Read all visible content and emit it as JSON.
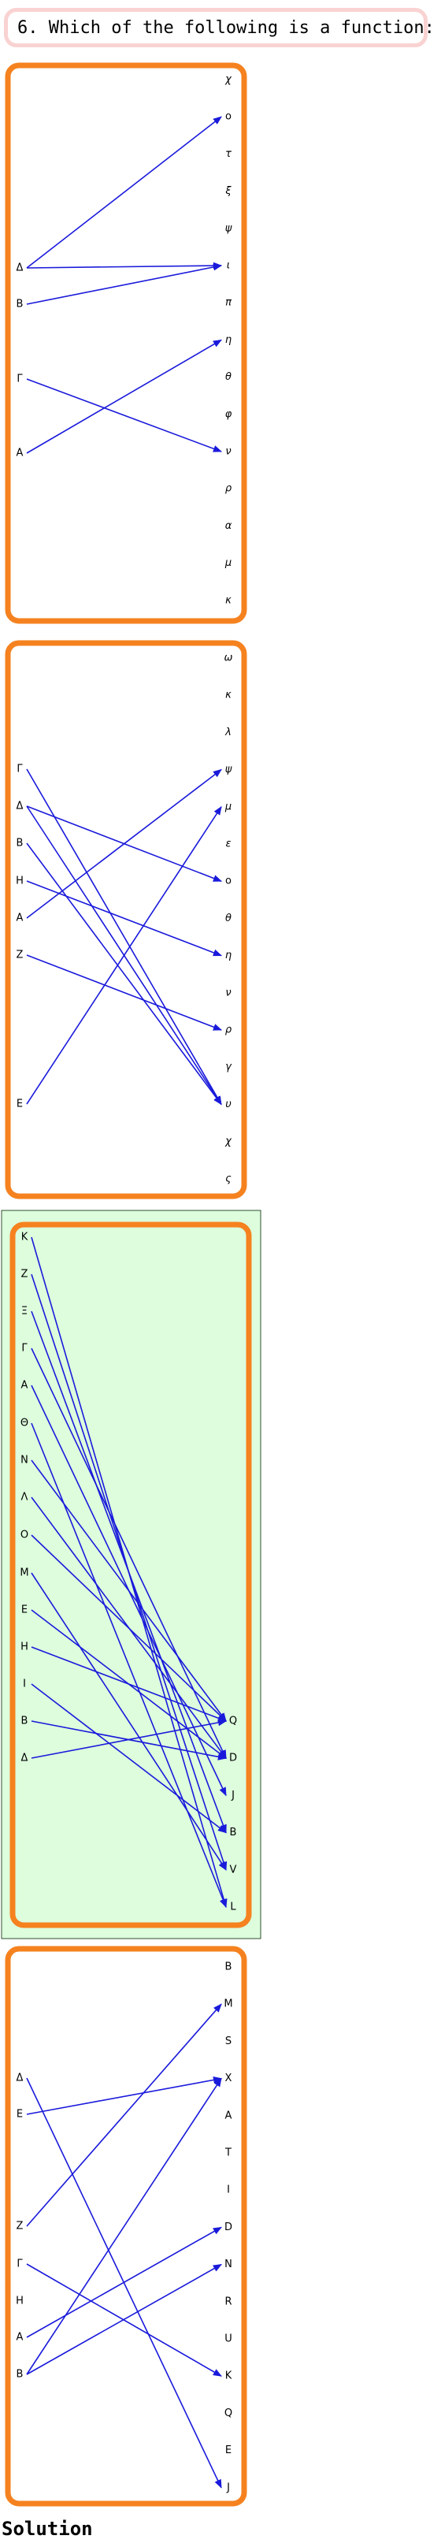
{
  "question": {
    "number": "6.",
    "text": "Which of the following is a function:"
  },
  "solution_label": "Solution",
  "colors": {
    "panel_border": "#f5821f",
    "arrow": "#1a1adb",
    "highlight_fill": "#ddfddd",
    "highlight_border": "#2f4f2f",
    "question_border": "#f9d2d2"
  },
  "options": [
    {
      "id": "option-1",
      "highlighted": false,
      "domain": [
        "Δ",
        "B",
        "Γ",
        "A"
      ],
      "codomain": [
        "χ",
        "o",
        "τ",
        "ξ",
        "ψ",
        "ι",
        "π",
        "η",
        "θ",
        "φ",
        "ν",
        "ρ",
        "α",
        "μ",
        "κ"
      ],
      "arrows": [
        [
          "Δ",
          "o"
        ],
        [
          "Δ",
          "ι"
        ],
        [
          "B",
          "ι"
        ],
        [
          "Γ",
          "ν"
        ],
        [
          "A",
          "η"
        ]
      ]
    },
    {
      "id": "option-2",
      "highlighted": false,
      "domain": [
        "Γ",
        "Δ",
        "B",
        "H",
        "A",
        "Z",
        "E"
      ],
      "codomain": [
        "ω",
        "κ",
        "λ",
        "ψ",
        "μ",
        "ε",
        "o",
        "θ",
        "η",
        "ν",
        "ρ",
        "γ",
        "υ",
        "χ",
        "ς"
      ],
      "arrows": [
        [
          "Γ",
          "υ"
        ],
        [
          "Δ",
          "o"
        ],
        [
          "Δ",
          "υ"
        ],
        [
          "B",
          "υ"
        ],
        [
          "H",
          "η"
        ],
        [
          "A",
          "ψ"
        ],
        [
          "Z",
          "ρ"
        ],
        [
          "E",
          "μ"
        ]
      ]
    },
    {
      "id": "option-3",
      "highlighted": true,
      "domain": [
        "K",
        "Z",
        "Ξ",
        "Γ",
        "A",
        "Θ",
        "N",
        "Λ",
        "O",
        "M",
        "E",
        "H",
        "I",
        "B",
        "Δ"
      ],
      "codomain": [
        "Q",
        "D",
        "J",
        "B",
        "V",
        "L"
      ],
      "arrows": [
        [
          "K",
          "L"
        ],
        [
          "Z",
          "V"
        ],
        [
          "Ξ",
          "B"
        ],
        [
          "Γ",
          "D"
        ],
        [
          "A",
          "J"
        ],
        [
          "Θ",
          "L"
        ],
        [
          "N",
          "Q"
        ],
        [
          "Λ",
          "D"
        ],
        [
          "O",
          "Q"
        ],
        [
          "M",
          "V"
        ],
        [
          "E",
          "D"
        ],
        [
          "H",
          "Q"
        ],
        [
          "I",
          "B"
        ],
        [
          "B",
          "D"
        ],
        [
          "Δ",
          "Q"
        ]
      ]
    },
    {
      "id": "option-4",
      "highlighted": false,
      "domain": [
        "Δ",
        "E",
        "Z",
        "Γ",
        "H",
        "A",
        "B"
      ],
      "codomain": [
        "B",
        "M",
        "S",
        "X",
        "A",
        "T",
        "I",
        "D",
        "N",
        "R",
        "U",
        "K",
        "Q",
        "E",
        "J"
      ],
      "arrows": [
        [
          "Δ",
          "J"
        ],
        [
          "E",
          "X"
        ],
        [
          "Z",
          "M"
        ],
        [
          "Γ",
          "K"
        ],
        [
          "A",
          "D"
        ],
        [
          "B",
          "N"
        ],
        [
          "B",
          "X"
        ]
      ]
    }
  ]
}
